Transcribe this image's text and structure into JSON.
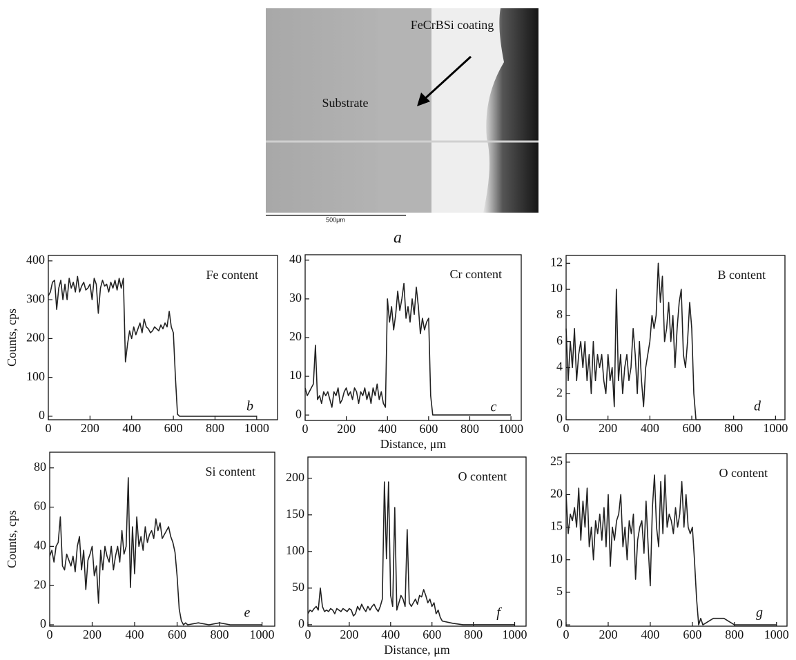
{
  "micrograph": {
    "coating_label": "FeCrBSi coating",
    "substrate_label": "Substrate",
    "scale_bar": "500μm",
    "caption": "a"
  },
  "chart_data": [
    {
      "type": "line",
      "title": "Fe content",
      "panel_label": "b",
      "ylabel": "Counts, cps",
      "color": "#222222",
      "xlim": [
        0,
        1100
      ],
      "ylim": [
        -9,
        414
      ],
      "xticks": [
        0,
        200,
        400,
        600,
        800,
        1000
      ],
      "yticks": [
        0,
        100,
        200,
        300,
        400
      ],
      "x": [
        0,
        10,
        20,
        30,
        40,
        50,
        60,
        70,
        80,
        90,
        100,
        110,
        120,
        130,
        140,
        150,
        160,
        170,
        180,
        190,
        200,
        210,
        220,
        230,
        240,
        250,
        260,
        270,
        280,
        290,
        300,
        310,
        320,
        330,
        340,
        350,
        360,
        370,
        380,
        390,
        400,
        410,
        420,
        430,
        440,
        450,
        460,
        470,
        480,
        490,
        500,
        510,
        520,
        530,
        540,
        550,
        560,
        570,
        580,
        590,
        600,
        610,
        620,
        630,
        640,
        650,
        700,
        750,
        800,
        850,
        900,
        950,
        1000
      ],
      "values": [
        310,
        320,
        345,
        350,
        275,
        330,
        350,
        300,
        340,
        300,
        355,
        330,
        345,
        320,
        360,
        320,
        335,
        345,
        325,
        330,
        340,
        300,
        355,
        340,
        265,
        330,
        350,
        335,
        340,
        320,
        345,
        330,
        350,
        325,
        355,
        330,
        355,
        140,
        185,
        220,
        200,
        230,
        210,
        225,
        240,
        215,
        250,
        230,
        225,
        215,
        220,
        230,
        225,
        220,
        235,
        225,
        240,
        230,
        270,
        230,
        215,
        100,
        5,
        0,
        0,
        0,
        0,
        0,
        0,
        0,
        0,
        0,
        0
      ]
    },
    {
      "type": "line",
      "title": "Cr content",
      "panel_label": "c",
      "xlabel": "Distance, μm",
      "color": "#222222",
      "xlim": [
        0,
        1050
      ],
      "ylim": [
        -1.4,
        41.4
      ],
      "xticks": [
        0,
        200,
        400,
        600,
        800,
        1000
      ],
      "yticks": [
        0,
        10,
        20,
        30,
        40
      ],
      "x": [
        0,
        10,
        20,
        30,
        40,
        50,
        60,
        70,
        80,
        90,
        100,
        110,
        120,
        130,
        140,
        150,
        160,
        170,
        180,
        190,
        200,
        210,
        220,
        230,
        240,
        250,
        260,
        270,
        280,
        290,
        300,
        310,
        320,
        330,
        340,
        350,
        360,
        370,
        380,
        390,
        400,
        410,
        420,
        430,
        440,
        450,
        460,
        470,
        480,
        490,
        500,
        510,
        520,
        530,
        540,
        550,
        560,
        570,
        580,
        590,
        600,
        610,
        620,
        630,
        640,
        650,
        700,
        750,
        800,
        850,
        900,
        950,
        1000
      ],
      "values": [
        7,
        5,
        6,
        7,
        8,
        18,
        4,
        5,
        3,
        6,
        5,
        6,
        4,
        2,
        6,
        5,
        7,
        3,
        4,
        6,
        7,
        5,
        6,
        4,
        7,
        6,
        3,
        6,
        5,
        7,
        4,
        6,
        3,
        7,
        5,
        8,
        4,
        6,
        3,
        2,
        30,
        24,
        28,
        22,
        26,
        32,
        27,
        30,
        34,
        25,
        28,
        24,
        30,
        26,
        33,
        28,
        21,
        25,
        22,
        24,
        25,
        5,
        0,
        0,
        0,
        0,
        0,
        0,
        0,
        0,
        0,
        0,
        0
      ]
    },
    {
      "type": "line",
      "title": "B content",
      "panel_label": "d",
      "color": "#222222",
      "xlim": [
        0,
        1045
      ],
      "ylim": [
        0,
        12.6
      ],
      "xticks": [
        0,
        200,
        400,
        600,
        800,
        1000
      ],
      "yticks": [
        0,
        2,
        4,
        6,
        8,
        10,
        12
      ],
      "x": [
        0,
        10,
        20,
        30,
        40,
        50,
        60,
        70,
        80,
        90,
        100,
        110,
        120,
        130,
        140,
        150,
        160,
        170,
        180,
        190,
        200,
        210,
        220,
        230,
        240,
        250,
        260,
        270,
        280,
        290,
        300,
        310,
        320,
        330,
        340,
        350,
        360,
        370,
        380,
        390,
        400,
        410,
        420,
        430,
        440,
        450,
        460,
        470,
        480,
        490,
        500,
        510,
        520,
        530,
        540,
        550,
        560,
        570,
        580,
        590,
        600,
        610,
        620,
        630,
        640,
        650,
        700,
        750,
        800,
        850,
        900,
        950,
        1000
      ],
      "values": [
        7,
        3,
        6,
        4,
        7,
        3,
        5,
        6,
        4,
        6,
        3,
        5,
        2,
        6,
        3,
        5,
        4,
        5,
        3,
        2,
        5,
        3,
        4,
        1,
        10,
        3,
        5,
        2,
        4,
        5,
        3,
        4,
        7,
        5,
        2,
        6,
        3,
        1,
        4,
        5,
        6,
        8,
        7,
        8,
        12,
        9,
        11,
        6,
        7,
        9,
        6,
        8,
        4,
        7,
        9,
        10,
        5,
        4,
        6,
        9,
        7,
        2,
        0,
        0,
        0,
        0,
        0,
        0,
        0,
        0,
        0,
        0,
        0
      ]
    },
    {
      "type": "line",
      "title": "Si content",
      "panel_label": "e",
      "ylabel": "Counts, cps",
      "color": "#222222",
      "xlim": [
        0,
        1060
      ],
      "ylim": [
        -0.7,
        88
      ],
      "xticks": [
        0,
        200,
        400,
        600,
        800,
        1000
      ],
      "yticks": [
        0,
        20,
        40,
        60,
        80
      ],
      "x": [
        0,
        10,
        20,
        30,
        40,
        50,
        60,
        70,
        80,
        90,
        100,
        110,
        120,
        130,
        140,
        150,
        160,
        170,
        180,
        190,
        200,
        210,
        220,
        230,
        240,
        250,
        260,
        270,
        280,
        290,
        300,
        310,
        320,
        330,
        340,
        350,
        360,
        370,
        380,
        390,
        400,
        410,
        420,
        430,
        440,
        450,
        460,
        470,
        480,
        490,
        500,
        510,
        520,
        530,
        540,
        550,
        560,
        570,
        580,
        590,
        600,
        610,
        620,
        630,
        640,
        650,
        700,
        750,
        800,
        850,
        900,
        950,
        1000
      ],
      "values": [
        35,
        38,
        32,
        40,
        42,
        55,
        30,
        28,
        36,
        33,
        30,
        35,
        27,
        40,
        45,
        28,
        38,
        18,
        33,
        36,
        40,
        25,
        30,
        11,
        38,
        28,
        40,
        35,
        32,
        40,
        28,
        35,
        40,
        32,
        48,
        36,
        40,
        75,
        19,
        50,
        26,
        55,
        40,
        45,
        38,
        50,
        42,
        46,
        48,
        44,
        54,
        48,
        52,
        44,
        46,
        48,
        50,
        45,
        42,
        37,
        25,
        8,
        2,
        0,
        1,
        0,
        1,
        0,
        1,
        0,
        0,
        0,
        0
      ]
    },
    {
      "type": "line",
      "title": "O content",
      "panel_label": "f",
      "xlabel": "Distance, μm",
      "color": "#222222",
      "xlim": [
        0,
        1055
      ],
      "ylim": [
        -2,
        229
      ],
      "xticks": [
        0,
        200,
        400,
        600,
        800,
        1000
      ],
      "yticks": [
        0,
        50,
        100,
        150,
        200
      ],
      "x": [
        0,
        10,
        20,
        30,
        40,
        50,
        60,
        70,
        80,
        90,
        100,
        110,
        120,
        130,
        140,
        150,
        160,
        170,
        180,
        190,
        200,
        210,
        220,
        230,
        240,
        250,
        260,
        270,
        280,
        290,
        300,
        310,
        320,
        330,
        340,
        350,
        360,
        370,
        380,
        390,
        400,
        410,
        420,
        430,
        440,
        450,
        460,
        470,
        480,
        490,
        500,
        510,
        520,
        530,
        540,
        550,
        560,
        570,
        580,
        590,
        600,
        610,
        620,
        630,
        640,
        650,
        700,
        750,
        800,
        850,
        900,
        950,
        1000
      ],
      "values": [
        15,
        20,
        18,
        22,
        25,
        20,
        50,
        25,
        18,
        20,
        18,
        22,
        20,
        15,
        22,
        20,
        18,
        22,
        20,
        18,
        22,
        20,
        12,
        15,
        25,
        20,
        28,
        22,
        18,
        25,
        20,
        25,
        28,
        22,
        18,
        25,
        35,
        195,
        90,
        195,
        40,
        25,
        160,
        20,
        30,
        40,
        35,
        25,
        130,
        30,
        25,
        30,
        35,
        28,
        40,
        38,
        48,
        40,
        30,
        35,
        25,
        30,
        15,
        20,
        10,
        5,
        2,
        0,
        0,
        0,
        0,
        0,
        0
      ]
    },
    {
      "type": "line",
      "title": "O content",
      "panel_label": "g",
      "color": "#222222",
      "xlim": [
        0,
        1050
      ],
      "ylim": [
        -0.2,
        26.3
      ],
      "xticks": [
        0,
        200,
        400,
        600,
        800,
        1000
      ],
      "yticks": [
        0,
        5,
        10,
        15,
        20,
        25
      ],
      "x": [
        0,
        10,
        20,
        30,
        40,
        50,
        60,
        70,
        80,
        90,
        100,
        110,
        120,
        130,
        140,
        150,
        160,
        170,
        180,
        190,
        200,
        210,
        220,
        230,
        240,
        250,
        260,
        270,
        280,
        290,
        300,
        310,
        320,
        330,
        340,
        350,
        360,
        370,
        380,
        390,
        400,
        410,
        420,
        430,
        440,
        450,
        460,
        470,
        480,
        490,
        500,
        510,
        520,
        530,
        540,
        550,
        560,
        570,
        580,
        590,
        600,
        610,
        620,
        630,
        640,
        650,
        700,
        750,
        800,
        850,
        900,
        950,
        1000
      ],
      "values": [
        20,
        14,
        17,
        16,
        18,
        15,
        21,
        13,
        19,
        15,
        21,
        12,
        15,
        10,
        16,
        14,
        17,
        13,
        18,
        12,
        20,
        9,
        15,
        13,
        16,
        17,
        20,
        12,
        15,
        10,
        16,
        14,
        17,
        7,
        13,
        15,
        16,
        11,
        19,
        12,
        6,
        18,
        23,
        15,
        12,
        22,
        14,
        23,
        15,
        17,
        16,
        14,
        18,
        15,
        17,
        22,
        15,
        20,
        15,
        14,
        15,
        10,
        4,
        0,
        1,
        0,
        1,
        1,
        0,
        0,
        0,
        0,
        0
      ]
    }
  ]
}
